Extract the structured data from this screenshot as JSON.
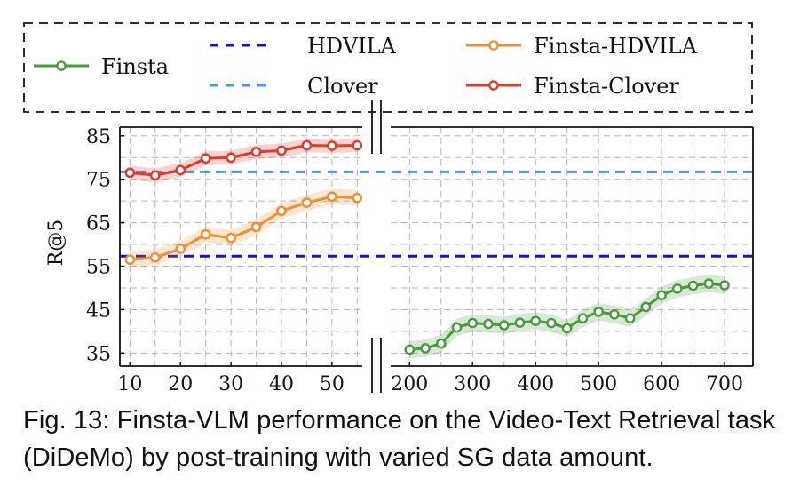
{
  "chart_data": {
    "type": "line",
    "ylabel": "R@5",
    "xlabel": "",
    "ylim": [
      32,
      87
    ],
    "yticks": [
      35,
      45,
      55,
      65,
      75,
      85
    ],
    "grid": true,
    "legend_position": "top",
    "broken_x_axis": true,
    "left_panel": {
      "xlim": [
        8,
        56
      ],
      "xticks": [
        10,
        20,
        30,
        40,
        50
      ]
    },
    "right_panel": {
      "xlim": [
        170,
        745
      ],
      "xticks": [
        200,
        300,
        400,
        500,
        600,
        700
      ]
    },
    "reference_lines": [
      {
        "name": "HDVILA",
        "value": 57.3,
        "color": "#1414cc",
        "style": "dashed"
      },
      {
        "name": "Clover",
        "value": 76.7,
        "color": "#4a9ae8",
        "style": "dashed"
      }
    ],
    "series": [
      {
        "name": "Finsta-HDVILA",
        "panel": "left",
        "color": "#ef8f2f",
        "band": 1.8,
        "x": [
          10,
          15,
          20,
          25,
          30,
          35,
          40,
          45,
          50,
          55
        ],
        "values": [
          56.5,
          57.0,
          59.0,
          62.3,
          61.5,
          64.0,
          67.7,
          69.6,
          71.0,
          70.7
        ]
      },
      {
        "name": "Finsta-Clover",
        "panel": "left",
        "color": "#e03a2a",
        "band": 1.6,
        "x": [
          10,
          15,
          20,
          25,
          30,
          35,
          40,
          45,
          50,
          55
        ],
        "values": [
          76.5,
          75.9,
          77.1,
          79.8,
          80.0,
          81.3,
          81.6,
          82.8,
          82.7,
          82.8
        ]
      },
      {
        "name": "Finsta",
        "panel": "right",
        "color": "#4a9a3e",
        "band": 2.0,
        "x": [
          200,
          225,
          250,
          275,
          300,
          325,
          350,
          375,
          400,
          425,
          450,
          475,
          500,
          525,
          550,
          575,
          600,
          625,
          650,
          675,
          700
        ],
        "values": [
          35.8,
          36.1,
          37.2,
          40.9,
          41.9,
          41.7,
          41.4,
          42.0,
          42.4,
          41.9,
          40.7,
          43.0,
          44.5,
          43.9,
          43.0,
          45.6,
          48.3,
          49.8,
          50.5,
          51.0,
          50.6
        ]
      }
    ]
  },
  "legend": {
    "items": [
      {
        "label": "Finsta",
        "color": "#4a9a3e",
        "style": "marker-line"
      },
      {
        "label": "HDVILA",
        "color": "#1414cc",
        "style": "dashed"
      },
      {
        "label": "Finsta-HDVILA",
        "color": "#ef8f2f",
        "style": "marker-line"
      },
      {
        "label": "Clover",
        "color": "#4a9ae8",
        "style": "dashed"
      },
      {
        "label": "Finsta-Clover",
        "color": "#e03a2a",
        "style": "marker-line"
      }
    ]
  },
  "caption": "Fig. 13: Finsta-VLM performance on the Video-Text Retrieval task (DiDeMo) by post-training with varied SG data amount."
}
